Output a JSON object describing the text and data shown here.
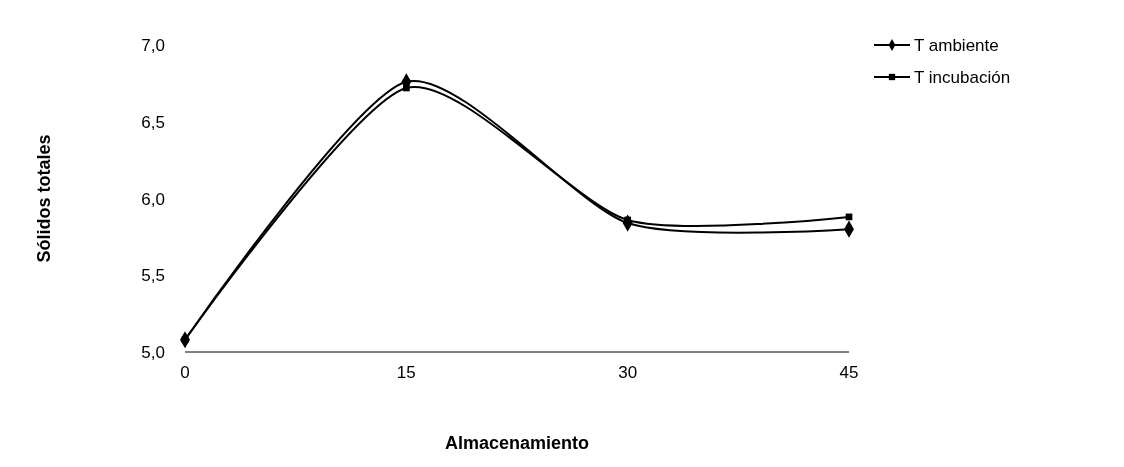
{
  "chart_data": {
    "type": "line",
    "xlabel": "Almacenamiento",
    "ylabel": "Sólidos totales",
    "x": [
      0,
      15,
      30,
      45
    ],
    "xlim": [
      0,
      45
    ],
    "xticks": [
      0,
      15,
      30,
      45
    ],
    "ylim": [
      5,
      7
    ],
    "yticks": [
      {
        "value": 5,
        "label": "5,0"
      },
      {
        "value": 5.5,
        "label": "5,5"
      },
      {
        "value": 6,
        "label": "6,0"
      },
      {
        "value": 6.5,
        "label": "6,5"
      },
      {
        "value": 7,
        "label": "7,0"
      }
    ],
    "grid": false,
    "legend": "right",
    "line_style": "solid",
    "series": [
      {
        "name": "T ambiente",
        "color": "#000000",
        "marker": "diamond",
        "values": [
          5.08,
          6.76,
          5.84,
          5.8
        ]
      },
      {
        "name": "T incubación",
        "color": "#000000",
        "marker": "square",
        "values": [
          5.08,
          6.72,
          5.86,
          5.88
        ]
      }
    ]
  }
}
